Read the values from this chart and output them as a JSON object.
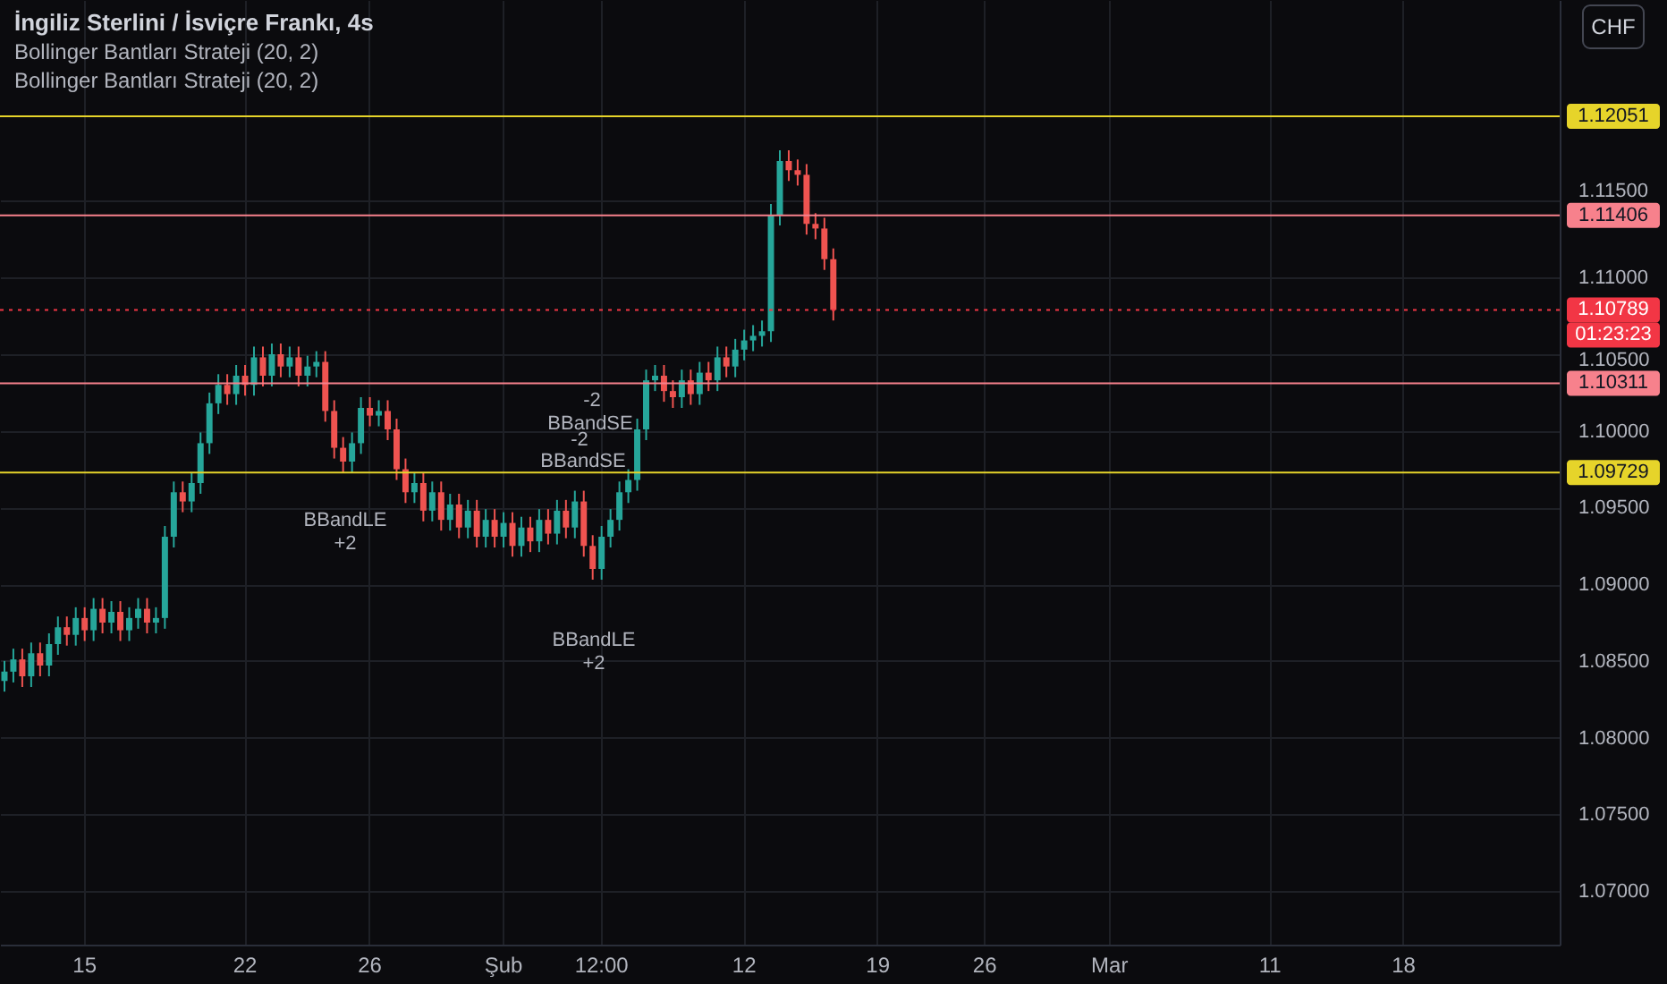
{
  "chart_data": {
    "type": "candlestick",
    "title": "İngiliz Sterlini / İsviçre Frankı, 4s",
    "categories": [
      null,
      null,
      null,
      null,
      null,
      null,
      null,
      null,
      null,
      "15",
      null,
      null,
      null,
      null,
      null,
      null,
      null,
      null,
      null,
      null,
      null,
      null,
      null,
      null,
      null,
      null,
      null,
      "22",
      null,
      null,
      null,
      null,
      null,
      null,
      null,
      null,
      null,
      null,
      null,
      null,
      null,
      "26",
      null,
      null,
      null,
      null,
      null,
      null,
      null,
      null,
      null,
      null,
      null,
      null,
      null,
      null,
      "Şub",
      null,
      null,
      null,
      null,
      null,
      null,
      null,
      null,
      null,
      null,
      "12:00",
      null,
      null,
      null,
      null,
      null,
      null,
      null,
      null,
      null,
      null,
      null,
      null,
      null,
      null,
      null,
      "12",
      null,
      null,
      null,
      null,
      null,
      null,
      null,
      null,
      null,
      null,
      null,
      null,
      null,
      null,
      "19",
      null,
      null,
      null,
      null,
      null,
      null,
      null,
      null,
      null,
      null,
      null,
      "26",
      null,
      null,
      null,
      null,
      null,
      null,
      null,
      null,
      null,
      null,
      null,
      null,
      null,
      "Mar",
      null,
      null,
      null,
      null,
      null,
      null,
      null,
      null,
      null,
      null,
      null,
      null,
      null,
      null,
      null,
      null,
      null,
      "11",
      null,
      null,
      null,
      null,
      null,
      null,
      null,
      null,
      null,
      null,
      null,
      null,
      null,
      null,
      "18",
      null,
      null,
      null,
      null,
      null,
      null,
      null,
      null,
      null,
      null,
      null,
      null,
      null,
      null,
      null,
      null,
      null
    ],
    "ohlc": [
      [
        1.0837,
        1.085,
        1.083,
        1.0843
      ],
      [
        1.0843,
        1.0858,
        1.0836,
        1.0851
      ],
      [
        1.0851,
        1.0858,
        1.0833,
        1.084
      ],
      [
        1.084,
        1.0862,
        1.0833,
        1.0855
      ],
      [
        1.0855,
        1.0862,
        1.084,
        1.0847
      ],
      [
        1.0847,
        1.0868,
        1.084,
        1.0861
      ],
      [
        1.0861,
        1.0879,
        1.0854,
        1.0872
      ],
      [
        1.0872,
        1.0879,
        1.086,
        1.0867
      ],
      [
        1.0867,
        1.0885,
        1.086,
        1.0878
      ],
      [
        1.0878,
        1.0885,
        1.0863,
        1.087
      ],
      [
        1.087,
        1.0891,
        1.0863,
        1.0884
      ],
      [
        1.0884,
        1.0891,
        1.0868,
        1.0875
      ],
      [
        1.0875,
        1.0889,
        1.0868,
        1.0882
      ],
      [
        1.0882,
        1.0889,
        1.0863,
        1.087
      ],
      [
        1.087,
        1.0885,
        1.0863,
        1.0878
      ],
      [
        1.0878,
        1.0891,
        1.0871,
        1.0884
      ],
      [
        1.0884,
        1.0891,
        1.0868,
        1.0875
      ],
      [
        1.0875,
        1.0885,
        1.0868,
        1.0878
      ],
      [
        1.0878,
        1.0938,
        1.0871,
        1.0931
      ],
      [
        1.0931,
        1.0967,
        1.0924,
        1.096
      ],
      [
        1.096,
        1.0967,
        1.0947,
        1.0954
      ],
      [
        1.0954,
        1.0973,
        1.0947,
        1.0966
      ],
      [
        1.0966,
        1.0999,
        1.0959,
        1.0992
      ],
      [
        1.0992,
        1.1025,
        1.0985,
        1.1018
      ],
      [
        1.1018,
        1.1037,
        1.1011,
        1.103
      ],
      [
        1.103,
        1.1037,
        1.1017,
        1.1024
      ],
      [
        1.1024,
        1.1043,
        1.1017,
        1.1036
      ],
      [
        1.1036,
        1.1043,
        1.1023,
        1.103
      ],
      [
        1.103,
        1.1055,
        1.1023,
        1.1048
      ],
      [
        1.1048,
        1.1055,
        1.1029,
        1.1036
      ],
      [
        1.1036,
        1.1057,
        1.1029,
        1.105
      ],
      [
        1.105,
        1.1057,
        1.1035,
        1.1042
      ],
      [
        1.1042,
        1.1055,
        1.1035,
        1.1048
      ],
      [
        1.1048,
        1.1055,
        1.1029,
        1.1036
      ],
      [
        1.1036,
        1.1049,
        1.1029,
        1.1042
      ],
      [
        1.1042,
        1.1052,
        1.1035,
        1.1045
      ],
      [
        1.1045,
        1.1052,
        1.1006,
        1.1013
      ],
      [
        1.1013,
        1.102,
        1.0982,
        1.0989
      ],
      [
        1.0989,
        1.0996,
        1.0973,
        1.098
      ],
      [
        1.098,
        1.0999,
        1.0973,
        1.0992
      ],
      [
        1.0992,
        1.1022,
        1.0985,
        1.1015
      ],
      [
        1.1015,
        1.1022,
        1.1003,
        1.101
      ],
      [
        1.101,
        1.102,
        1.1003,
        1.1013
      ],
      [
        1.1013,
        1.102,
        1.0994,
        1.1001
      ],
      [
        1.1001,
        1.1008,
        1.0968,
        1.0975
      ],
      [
        1.0975,
        1.0982,
        1.0953,
        1.096
      ],
      [
        1.096,
        1.0973,
        1.0953,
        1.0966
      ],
      [
        1.0966,
        1.0973,
        1.0941,
        1.0948
      ],
      [
        1.0948,
        1.0967,
        1.0941,
        1.096
      ],
      [
        1.096,
        1.0967,
        1.0935,
        1.0942
      ],
      [
        1.0942,
        1.0959,
        1.0935,
        1.0952
      ],
      [
        1.0952,
        1.0959,
        1.093,
        1.0937
      ],
      [
        1.0937,
        1.0955,
        1.093,
        1.0948
      ],
      [
        1.0948,
        1.0955,
        1.0924,
        1.0931
      ],
      [
        1.0931,
        1.0949,
        1.0924,
        1.0942
      ],
      [
        1.0942,
        1.0949,
        1.0924,
        1.0931
      ],
      [
        1.0931,
        1.0947,
        1.0924,
        1.094
      ],
      [
        1.094,
        1.0947,
        1.0918,
        1.0925
      ],
      [
        1.0925,
        1.0944,
        1.0918,
        1.0937
      ],
      [
        1.0937,
        1.0944,
        1.0921,
        1.0928
      ],
      [
        1.0928,
        1.0949,
        1.0921,
        1.0942
      ],
      [
        1.0942,
        1.0949,
        1.0926,
        1.0933
      ],
      [
        1.0933,
        1.0955,
        1.0926,
        1.0948
      ],
      [
        1.0948,
        1.0955,
        1.093,
        1.0937
      ],
      [
        1.0937,
        1.0961,
        1.093,
        1.0954
      ],
      [
        1.0954,
        1.0961,
        1.0918,
        1.0925
      ],
      [
        1.0925,
        1.0932,
        1.0903,
        1.091
      ],
      [
        1.091,
        1.0938,
        1.0903,
        1.0931
      ],
      [
        1.0931,
        1.0949,
        1.0924,
        1.0942
      ],
      [
        1.0942,
        1.0967,
        1.0935,
        1.096
      ],
      [
        1.096,
        1.0975,
        1.0953,
        1.0968
      ],
      [
        1.0968,
        1.1008,
        1.0961,
        1.1001
      ],
      [
        1.1001,
        1.104,
        1.0994,
        1.1033
      ],
      [
        1.1033,
        1.1043,
        1.1026,
        1.1036
      ],
      [
        1.1036,
        1.1043,
        1.1019,
        1.1026
      ],
      [
        1.1026,
        1.1033,
        1.1015,
        1.1022
      ],
      [
        1.1022,
        1.104,
        1.1015,
        1.1033
      ],
      [
        1.1033,
        1.104,
        1.1017,
        1.1024
      ],
      [
        1.1024,
        1.1045,
        1.1017,
        1.1038
      ],
      [
        1.1038,
        1.1045,
        1.1026,
        1.1033
      ],
      [
        1.1033,
        1.1055,
        1.1026,
        1.1048
      ],
      [
        1.1048,
        1.1055,
        1.1035,
        1.1042
      ],
      [
        1.1042,
        1.106,
        1.1035,
        1.1053
      ],
      [
        1.1053,
        1.1066,
        1.1046,
        1.1059
      ],
      [
        1.1059,
        1.1069,
        1.1052,
        1.1062
      ],
      [
        1.1062,
        1.1072,
        1.1055,
        1.1065
      ],
      [
        1.1065,
        1.1148,
        1.1058,
        1.1141
      ],
      [
        1.1141,
        1.1183,
        1.1134,
        1.1176
      ],
      [
        1.1176,
        1.1183,
        1.1163,
        1.117
      ],
      [
        1.117,
        1.1177,
        1.116,
        1.1167
      ],
      [
        1.1167,
        1.1174,
        1.1128,
        1.1135
      ],
      [
        1.1135,
        1.1142,
        1.1125,
        1.1132
      ],
      [
        1.1132,
        1.1139,
        1.1105,
        1.1112
      ],
      [
        1.1112,
        1.1119,
        1.1072,
        1.10789
      ],
      null,
      null,
      null,
      null,
      null,
      null,
      null,
      null,
      null,
      null,
      null,
      null,
      null,
      null,
      null,
      null,
      null,
      null,
      null,
      null,
      null,
      null,
      null,
      null,
      null,
      null,
      null,
      null,
      null,
      null,
      null,
      null,
      null,
      null,
      null,
      null,
      null,
      null,
      null,
      null,
      null,
      null,
      null,
      null,
      null,
      null,
      null,
      null,
      null,
      null,
      null,
      null,
      null,
      null,
      null,
      null,
      null,
      null,
      null,
      null,
      null,
      null,
      null,
      null,
      null,
      null,
      null,
      null,
      null,
      null,
      null,
      null,
      null,
      null,
      null,
      null,
      null,
      null,
      null,
      null,
      null
    ],
    "colors": [
      "#26a69a",
      "#26a69a",
      "#ef5350",
      "#26a69a",
      "#ef5350",
      "#26a69a",
      "#26a69a",
      "#ef5350",
      "#26a69a",
      "#ef5350",
      "#26a69a",
      "#ef5350",
      "#26a69a",
      "#ef5350",
      "#26a69a",
      "#26a69a",
      "#ef5350",
      "#26a69a",
      "#26a69a",
      "#26a69a",
      "#ef5350",
      "#26a69a",
      "#26a69a",
      "#26a69a",
      "#26a69a",
      "#ef5350",
      "#26a69a",
      "#ef5350",
      "#26a69a",
      "#ef5350",
      "#26a69a",
      "#ef5350",
      "#26a69a",
      "#ef5350",
      "#26a69a",
      "#26a69a",
      "#ef5350",
      "#ef5350",
      "#ef5350",
      "#26a69a",
      "#26a69a",
      "#ef5350",
      "#26a69a",
      "#ef5350",
      "#ef5350",
      "#ef5350",
      "#26a69a",
      "#ef5350",
      "#26a69a",
      "#ef5350",
      "#26a69a",
      "#ef5350",
      "#26a69a",
      "#ef5350",
      "#26a69a",
      "#ef5350",
      "#26a69a",
      "#ef5350",
      "#26a69a",
      "#ef5350",
      "#26a69a",
      "#ef5350",
      "#26a69a",
      "#ef5350",
      "#26a69a",
      "#ef5350",
      "#ef5350",
      "#26a69a",
      "#26a69a",
      "#26a69a",
      "#26a69a",
      "#26a69a",
      "#26a69a",
      "#26a69a",
      "#ef5350",
      "#ef5350",
      "#26a69a",
      "#ef5350",
      "#26a69a",
      "#ef5350",
      "#26a69a",
      "#ef5350",
      "#26a69a",
      "#26a69a",
      "#26a69a",
      "#26a69a",
      "#26a69a",
      "#26a69a",
      "#ef5350",
      "#ef5350",
      "#ef5350",
      "#ef5350",
      "#ef5350",
      "#ef5350",
      null,
      null,
      null,
      null,
      null,
      null,
      null,
      null,
      null,
      null,
      null,
      null,
      null,
      null,
      null,
      null,
      null,
      null,
      null,
      null,
      null,
      null,
      null,
      null,
      null,
      null,
      null,
      null,
      null,
      null,
      null,
      null,
      null,
      null,
      null,
      null,
      null,
      null,
      null,
      null,
      null,
      null,
      null,
      null,
      null,
      null,
      null,
      null,
      null,
      null,
      null,
      null,
      null,
      null,
      null,
      null,
      null,
      null,
      null,
      null,
      null,
      null,
      null,
      null,
      null,
      null,
      null,
      null,
      null,
      null,
      null,
      null,
      null,
      null,
      null,
      null,
      null,
      null,
      null,
      null,
      null
    ],
    "ylim": [
      1.0665,
      1.1281
    ],
    "yticks": [
      {
        "value": 1.07,
        "label": "1.07000"
      },
      {
        "value": 1.075,
        "label": "1.07500"
      },
      {
        "value": 1.08,
        "label": "1.08000"
      },
      {
        "value": 1.085,
        "label": "1.08500"
      },
      {
        "value": 1.09,
        "label": "1.09000"
      },
      {
        "value": 1.095,
        "label": "1.09500"
      },
      {
        "value": 1.1,
        "label": "1.10000"
      },
      {
        "value": 1.105,
        "label": "1.10500"
      },
      {
        "value": 1.11,
        "label": "1.11000"
      },
      {
        "value": 1.115,
        "label": "1.11500"
      }
    ],
    "grid": true,
    "ref_lines": [
      {
        "axis": "y",
        "value": 1.12051,
        "label": "1.12051",
        "color": "#e6d42a",
        "line_style": "solid"
      },
      {
        "axis": "y",
        "value": 1.11406,
        "label": "1.11406",
        "color": "#f7818c",
        "line_style": "solid"
      },
      {
        "axis": "y",
        "value": 1.10789,
        "label": "1.10789",
        "color": "#f23645",
        "line_style": "dotted"
      },
      {
        "axis": "y",
        "value": 1.10311,
        "label": "1.10311",
        "color": "#f7818c",
        "line_style": "solid"
      },
      {
        "axis": "y",
        "value": 1.09729,
        "label": "1.09729",
        "color": "#e6d42a",
        "line_style": "solid"
      }
    ],
    "annotations": [
      "Bollinger Bantları Strateji (20, 2)",
      "Bollinger Bantları Strateji (20, 2)",
      "CHF",
      "01:23:23",
      "BBandLE",
      "+2",
      "BBandLE",
      "+2",
      "BBandSE",
      "-2",
      "BBandSE",
      "-2"
    ]
  }
}
